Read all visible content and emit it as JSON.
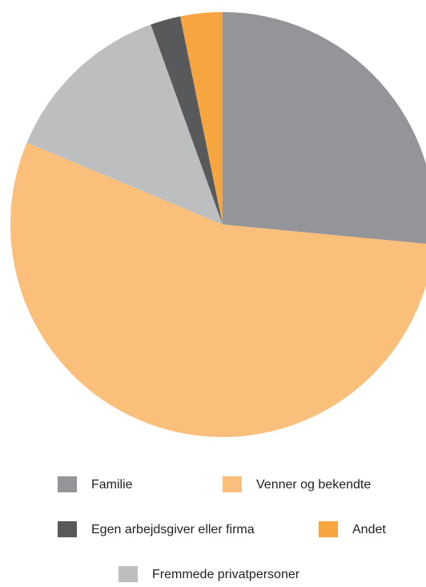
{
  "chart_data": {
    "type": "pie",
    "categories": [
      "Familie",
      "Venner og bekendte",
      "Fremmede privatpersoner",
      "Egen arbejdsgiver eller firma",
      "Andet"
    ],
    "values": [
      26.5,
      54.8,
      13.2,
      2.3,
      3.2
    ],
    "colors": [
      "#939598",
      "#fbbf7c",
      "#bcbec0",
      "#58595b",
      "#f7a541"
    ],
    "start_angle": 0,
    "direction": "clockwise"
  }
}
